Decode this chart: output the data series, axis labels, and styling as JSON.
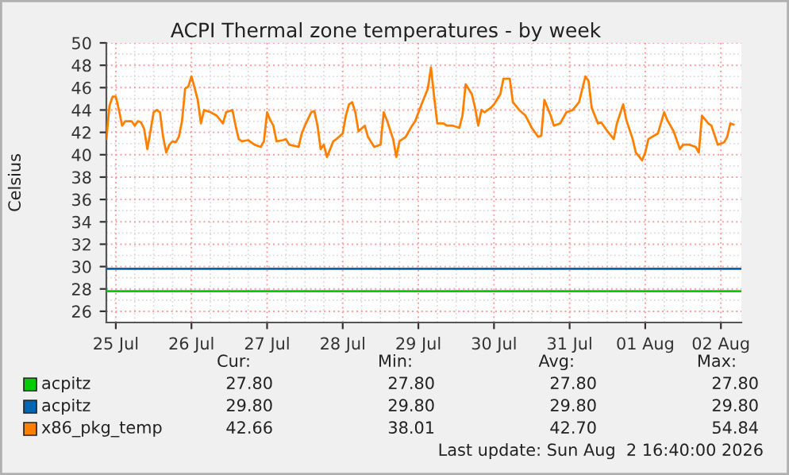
{
  "chart_data": {
    "type": "line",
    "title": "ACPI Thermal zone temperatures - by week",
    "ylabel": "Celsius",
    "xlim": [
      "2026-07-24T21:00",
      "2026-08-02T06:30"
    ],
    "xticks": [
      {
        "value": "2026-07-25",
        "label": "25 Jul"
      },
      {
        "value": "2026-07-26",
        "label": "26 Jul"
      },
      {
        "value": "2026-07-27",
        "label": "27 Jul"
      },
      {
        "value": "2026-07-28",
        "label": "28 Jul"
      },
      {
        "value": "2026-07-29",
        "label": "29 Jul"
      },
      {
        "value": "2026-07-30",
        "label": "30 Jul"
      },
      {
        "value": "2026-07-31",
        "label": "31 Jul"
      },
      {
        "value": "2026-08-01",
        "label": "01 Aug"
      },
      {
        "value": "2026-08-02",
        "label": "02 Aug"
      }
    ],
    "ylim": [
      25,
      50
    ],
    "yticks": [
      26,
      28,
      30,
      32,
      34,
      36,
      38,
      40,
      42,
      44,
      46,
      48,
      50
    ],
    "grid": true,
    "legend": "bottom",
    "marker": "none",
    "line_style": "solid",
    "series": [
      {
        "name": "acpitz",
        "color": "#00cc00",
        "x": [
          "2026-07-24T21:00",
          "2026-08-02T06:30"
        ],
        "values": [
          27.8,
          27.8
        ]
      },
      {
        "name": "acpitz",
        "color": "#0066b3",
        "x": [
          "2026-07-24T21:00",
          "2026-08-02T06:30"
        ],
        "values": [
          29.8,
          29.8
        ]
      },
      {
        "name": "x86_pkg_temp",
        "color": "#ff8000",
        "x": [
          "2026-07-24T21:00",
          "2026-07-24T22:00",
          "2026-07-24T23:00",
          "2026-07-25T00:00",
          "2026-07-25T01:00",
          "2026-07-25T02:00",
          "2026-07-25T03:00",
          "2026-07-25T05:00",
          "2026-07-25T06:00",
          "2026-07-25T07:00",
          "2026-07-25T08:00",
          "2026-07-25T09:00",
          "2026-07-25T10:00",
          "2026-07-25T11:00",
          "2026-07-25T12:00",
          "2026-07-25T13:00",
          "2026-07-25T14:00",
          "2026-07-25T15:00",
          "2026-07-25T16:00",
          "2026-07-25T17:00",
          "2026-07-25T18:00",
          "2026-07-25T19:00",
          "2026-07-25T20:00",
          "2026-07-25T21:00",
          "2026-07-25T22:00",
          "2026-07-25T23:00",
          "2026-07-26T00:00",
          "2026-07-26T01:00",
          "2026-07-26T02:00",
          "2026-07-26T03:00",
          "2026-07-26T04:00",
          "2026-07-26T06:00",
          "2026-07-26T08:00",
          "2026-07-26T10:00",
          "2026-07-26T11:00",
          "2026-07-26T13:00",
          "2026-07-26T14:00",
          "2026-07-26T15:00",
          "2026-07-26T16:00",
          "2026-07-26T18:00",
          "2026-07-26T20:00",
          "2026-07-26T22:00",
          "2026-07-26T23:00",
          "2026-07-27T00:00",
          "2026-07-27T01:00",
          "2026-07-27T02:00",
          "2026-07-27T03:00",
          "2026-07-27T05:00",
          "2026-07-27T06:00",
          "2026-07-27T07:00",
          "2026-07-27T10:00",
          "2026-07-27T11:00",
          "2026-07-27T12:00",
          "2026-07-27T14:00",
          "2026-07-27T15:00",
          "2026-07-27T16:00",
          "2026-07-27T17:00",
          "2026-07-27T18:00",
          "2026-07-27T19:00",
          "2026-07-27T21:00",
          "2026-07-27T22:00",
          "2026-07-28T00:00",
          "2026-07-28T01:00",
          "2026-07-28T02:00",
          "2026-07-28T03:00",
          "2026-07-28T04:00",
          "2026-07-28T05:00",
          "2026-07-28T07:00",
          "2026-07-28T08:00",
          "2026-07-28T10:00",
          "2026-07-28T12:00",
          "2026-07-28T13:00",
          "2026-07-28T14:00",
          "2026-07-28T16:00",
          "2026-07-28T17:00",
          "2026-07-28T18:00",
          "2026-07-28T20:00",
          "2026-07-28T22:00",
          "2026-07-28T23:00",
          "2026-07-29T01:00",
          "2026-07-29T03:00",
          "2026-07-29T04:00",
          "2026-07-29T05:00",
          "2026-07-29T06:00",
          "2026-07-29T08:00",
          "2026-07-29T09:00",
          "2026-07-29T11:00",
          "2026-07-29T13:00",
          "2026-07-29T14:00",
          "2026-07-29T15:00",
          "2026-07-29T17:00",
          "2026-07-29T18:00",
          "2026-07-29T19:00",
          "2026-07-29T20:00",
          "2026-07-29T21:00",
          "2026-07-29T23:00",
          "2026-07-30T00:00",
          "2026-07-30T02:00",
          "2026-07-30T03:00",
          "2026-07-30T05:00",
          "2026-07-30T06:00",
          "2026-07-30T08:00",
          "2026-07-30T10:00",
          "2026-07-30T12:00",
          "2026-07-30T14:00",
          "2026-07-30T15:00",
          "2026-07-30T16:00",
          "2026-07-30T18:00",
          "2026-07-30T19:00",
          "2026-07-30T21:00",
          "2026-07-30T23:00",
          "2026-07-31T01:00",
          "2026-07-31T03:00",
          "2026-07-31T05:00",
          "2026-07-31T06:00",
          "2026-07-31T07:00",
          "2026-07-31T09:00",
          "2026-07-31T10:00",
          "2026-07-31T12:00",
          "2026-07-31T14:00",
          "2026-07-31T15:00",
          "2026-07-31T17:00",
          "2026-07-31T18:00",
          "2026-07-31T20:00",
          "2026-07-31T21:00",
          "2026-07-31T23:00",
          "2026-08-01T00:00",
          "2026-08-01T01:00",
          "2026-08-01T04:00",
          "2026-08-01T06:00",
          "2026-08-01T07:00",
          "2026-08-01T09:00",
          "2026-08-01T11:00",
          "2026-08-01T12:00",
          "2026-08-01T14:00",
          "2026-08-01T16:00",
          "2026-08-01T17:00",
          "2026-08-01T18:00",
          "2026-08-01T20:00",
          "2026-08-01T21:00",
          "2026-08-01T23:00",
          "2026-08-02T01:00",
          "2026-08-02T02:00",
          "2026-08-02T03:00",
          "2026-08-02T04:00"
        ],
        "values": [
          41.4,
          44.4,
          45.2,
          45.2,
          44.0,
          42.6,
          43.0,
          43.0,
          42.6,
          43.0,
          42.9,
          42.3,
          40.5,
          42.1,
          43.8,
          44.0,
          43.8,
          41.6,
          40.2,
          40.9,
          41.2,
          41.1,
          41.6,
          43.0,
          45.9,
          46.1,
          47.0,
          46.0,
          44.9,
          42.8,
          44.0,
          43.8,
          43.5,
          42.8,
          43.8,
          44.0,
          42.6,
          41.4,
          41.2,
          41.3,
          40.9,
          40.7,
          41.2,
          43.8,
          43.1,
          42.6,
          41.2,
          41.3,
          41.4,
          40.9,
          40.7,
          41.9,
          42.6,
          43.8,
          43.9,
          42.6,
          40.5,
          40.9,
          39.8,
          41.2,
          41.4,
          41.9,
          43.5,
          44.5,
          44.7,
          43.8,
          42.1,
          42.6,
          41.6,
          40.7,
          40.9,
          43.8,
          43.1,
          41.4,
          39.8,
          41.2,
          41.6,
          42.6,
          43.0,
          44.5,
          45.9,
          47.8,
          45.2,
          42.8,
          42.8,
          42.6,
          42.6,
          42.4,
          43.5,
          46.3,
          45.4,
          44.2,
          42.6,
          44.0,
          43.8,
          44.2,
          44.5,
          45.4,
          46.8,
          46.8,
          44.7,
          44.0,
          43.5,
          42.4,
          41.6,
          41.7,
          44.9,
          43.5,
          42.6,
          42.8,
          43.8,
          44.0,
          44.7,
          47.0,
          46.6,
          44.2,
          42.8,
          42.9,
          42.1,
          41.4,
          42.8,
          44.5,
          43.1,
          41.4,
          40.2,
          39.5,
          40.2,
          41.4,
          41.9,
          43.8,
          43.1,
          42.1,
          40.5,
          40.9,
          40.9,
          40.7,
          40.2,
          43.5,
          42.8,
          42.6,
          40.9,
          41.1,
          41.6,
          42.8,
          42.7
        ]
      }
    ],
    "annotations": [
      "Cur:",
      "Min:",
      "Avg:",
      "Max:",
      "27.80",
      "27.80",
      "27.80",
      "27.80",
      "29.80",
      "29.80",
      "29.80",
      "29.80",
      "42.66",
      "38.01",
      "42.70",
      "54.84",
      "Last update: Sun Aug  2 16:40:00 2026"
    ]
  }
}
